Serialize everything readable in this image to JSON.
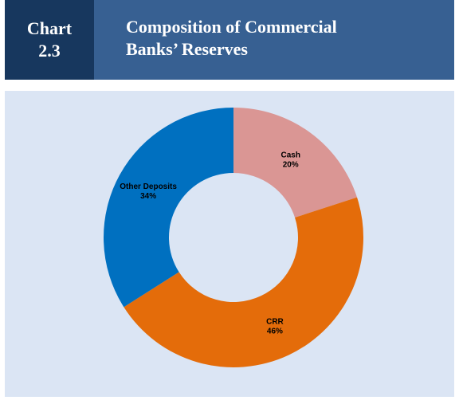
{
  "header": {
    "chart_label_line1": "Chart",
    "chart_label_line2": "2.3",
    "title_line1": "Composition of Commercial",
    "title_line2": "Banks’ Reserves"
  },
  "colors": {
    "header_dark": "#17375e",
    "header_mid": "#376092",
    "panel_bg": "#dbe5f4"
  },
  "chart_data": {
    "type": "pie",
    "variant": "donut",
    "title": "Composition of Commercial Banks’ Reserves",
    "slices": [
      {
        "name": "Cash",
        "value": 20,
        "label": "20%",
        "color": "#da9694"
      },
      {
        "name": "CRR",
        "value": 46,
        "label": "46%",
        "color": "#e46c0a"
      },
      {
        "name": "Other Deposits",
        "value": 34,
        "label": "34%",
        "color": "#0070c0"
      }
    ],
    "start_angle": "12 o'clock",
    "direction": "clockwise",
    "legend": "none"
  }
}
